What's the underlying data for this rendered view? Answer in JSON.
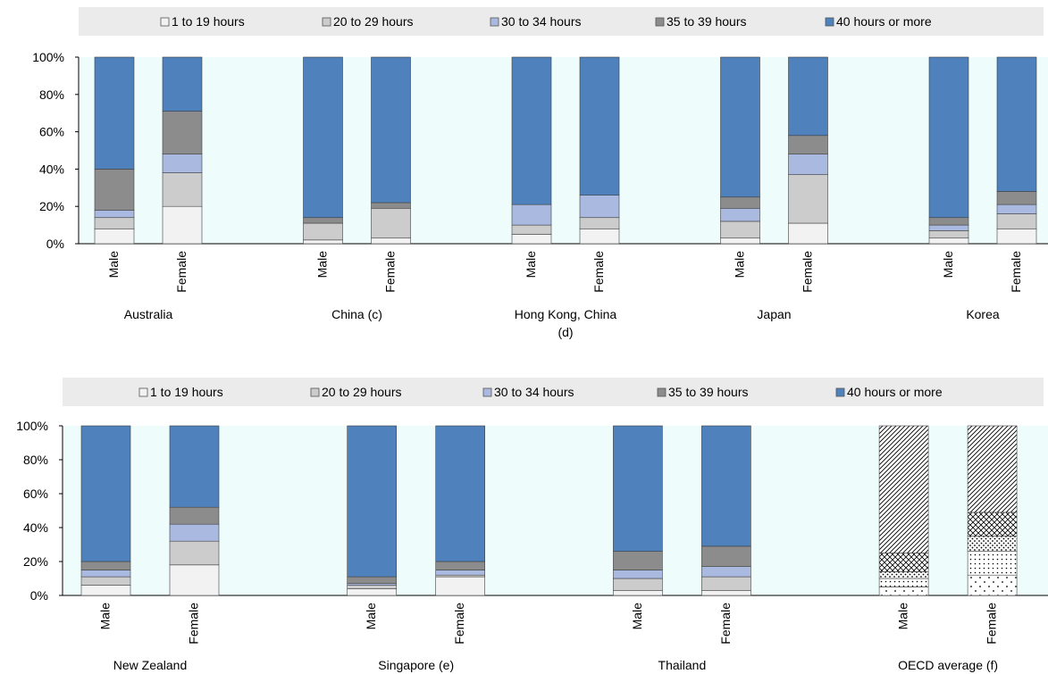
{
  "colors": {
    "h1_19": "#f2f2f2",
    "h20_29": "#cccccc",
    "h30_34": "#a9b9e0",
    "h35_39": "#8c8c8c",
    "h40_plus": "#4f81bd",
    "legend_bg": "#ebebeb",
    "group_band": "#eefcfc",
    "axis": "#000000"
  },
  "chart_data": [
    {
      "type": "bar",
      "stacked": true,
      "ylim": [
        0,
        100
      ],
      "y_ticks": [
        "0%",
        "20%",
        "40%",
        "60%",
        "80%",
        "100%"
      ],
      "legend": [
        "1 to 19 hours",
        "20 to 29 hours",
        "30 to 34 hours",
        "35 to 39 hours",
        "40 hours or more"
      ],
      "legend_placement": "top",
      "groups": [
        "Australia",
        "China (c)",
        "Hong Kong, China (d)",
        "Japan",
        "Korea"
      ],
      "categories": [
        "Male",
        "Female"
      ],
      "series": [
        {
          "name": "1 to 19 hours",
          "values": [
            [
              8,
              20
            ],
            [
              2,
              3
            ],
            [
              5,
              8
            ],
            [
              3,
              11
            ],
            [
              3,
              8
            ]
          ]
        },
        {
          "name": "20 to 29 hours",
          "values": [
            [
              6,
              18
            ],
            [
              9,
              16
            ],
            [
              5,
              6
            ],
            [
              9,
              26
            ],
            [
              4,
              8
            ]
          ]
        },
        {
          "name": "30 to 34 hours",
          "values": [
            [
              4,
              10
            ],
            [
              0,
              0
            ],
            [
              11,
              12
            ],
            [
              7,
              11
            ],
            [
              3,
              5
            ]
          ]
        },
        {
          "name": "35 to 39 hours",
          "values": [
            [
              22,
              23
            ],
            [
              3,
              3
            ],
            [
              0,
              0
            ],
            [
              6,
              10
            ],
            [
              4,
              7
            ]
          ]
        },
        {
          "name": "40 hours or more",
          "values": [
            [
              60,
              29
            ],
            [
              86,
              78
            ],
            [
              79,
              74
            ],
            [
              75,
              42
            ],
            [
              86,
              72
            ]
          ]
        }
      ]
    },
    {
      "type": "bar",
      "stacked": true,
      "ylim": [
        0,
        100
      ],
      "y_ticks": [
        "0%",
        "20%",
        "40%",
        "60%",
        "80%",
        "100%"
      ],
      "legend": [
        "1 to 19 hours",
        "20 to 29 hours",
        "30 to 34 hours",
        "35 to 39 hours",
        "40 hours or more"
      ],
      "legend_placement": "top",
      "groups": [
        "New Zealand",
        "Singapore (e)",
        "Thailand",
        "OECD average (f)"
      ],
      "categories": [
        "Male",
        "Female"
      ],
      "series": [
        {
          "name": "1 to 19 hours",
          "values": [
            [
              6,
              18
            ],
            [
              4,
              11
            ],
            [
              3,
              3
            ],
            [
              5,
              12
            ]
          ]
        },
        {
          "name": "20 to 29 hours",
          "values": [
            [
              5,
              14
            ],
            [
              2,
              1
            ],
            [
              7,
              8
            ],
            [
              5,
              14
            ]
          ]
        },
        {
          "name": "30 to 34 hours",
          "values": [
            [
              4,
              10
            ],
            [
              1,
              3
            ],
            [
              5,
              6
            ],
            [
              4,
              9
            ]
          ]
        },
        {
          "name": "35 to 39 hours",
          "values": [
            [
              5,
              10
            ],
            [
              4,
              5
            ],
            [
              11,
              12
            ],
            [
              11,
              14
            ]
          ]
        },
        {
          "name": "40 hours or more",
          "values": [
            [
              80,
              48
            ],
            [
              89,
              80
            ],
            [
              74,
              71
            ],
            [
              75,
              51
            ]
          ]
        }
      ]
    }
  ]
}
